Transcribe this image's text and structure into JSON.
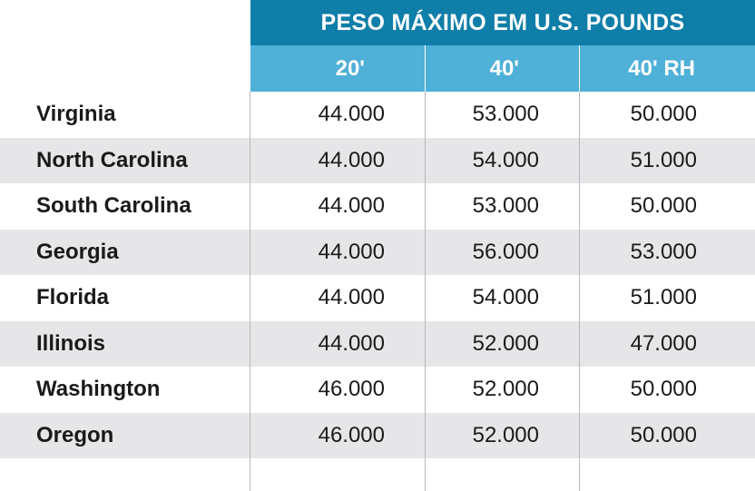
{
  "header": {
    "title": "PESO MÁXIMO EM U.S. POUNDS",
    "columns": [
      "20'",
      "40'",
      "40' RH"
    ]
  },
  "rows": [
    {
      "state": "Virginia",
      "v20": "44.000",
      "v40": "53.000",
      "v40rh": "50.000"
    },
    {
      "state": "North Carolina",
      "v20": "44.000",
      "v40": "54.000",
      "v40rh": "51.000"
    },
    {
      "state": "South Carolina",
      "v20": "44.000",
      "v40": "53.000",
      "v40rh": "50.000"
    },
    {
      "state": "Georgia",
      "v20": "44.000",
      "v40": "56.000",
      "v40rh": "53.000"
    },
    {
      "state": "Florida",
      "v20": "44.000",
      "v40": "54.000",
      "v40rh": "51.000"
    },
    {
      "state": "Illinois",
      "v20": "44.000",
      "v40": "52.000",
      "v40rh": "47.000"
    },
    {
      "state": "Washington",
      "v20": "46.000",
      "v40": "52.000",
      "v40rh": "50.000"
    },
    {
      "state": "Oregon",
      "v20": "46.000",
      "v40": "52.000",
      "v40rh": "50.000"
    }
  ],
  "colors": {
    "header_dark": "#0f7ea8",
    "header_light": "#4fb0d8",
    "row_shade": "#e6e6e8"
  }
}
